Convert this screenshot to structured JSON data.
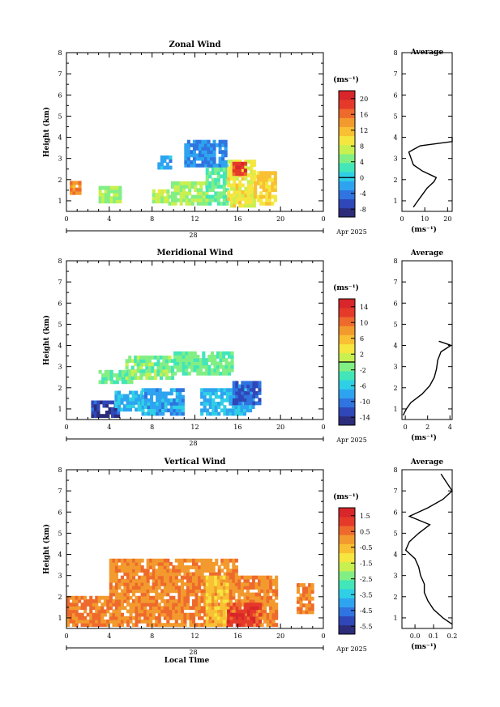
{
  "chart_data": [
    {
      "type": "heatmap",
      "title": "Zonal Wind",
      "ylabel": "Height (km)",
      "xlabel": "",
      "date_label": "Apr 2025",
      "day_label": "28",
      "x_ticks": [
        "0",
        "4",
        "8",
        "12",
        "16",
        "20",
        "0"
      ],
      "xlim": [
        0,
        24
      ],
      "ylim": [
        0.5,
        8
      ],
      "y_ticks": [
        "1",
        "2",
        "3",
        "4",
        "5",
        "6",
        "7",
        "8"
      ],
      "colorbar": {
        "unit": "(ms⁻¹)",
        "ticks": [
          "20",
          "16",
          "12",
          "8",
          "4",
          "0",
          "-4",
          "-8"
        ],
        "min": -10,
        "max": 22
      },
      "regions": [
        {
          "x": [
            0.3,
            1.3
          ],
          "y": [
            1.3,
            1.9
          ],
          "value": 14
        },
        {
          "x": [
            3.0,
            5.0
          ],
          "y": [
            0.9,
            1.6
          ],
          "value": 6
        },
        {
          "x": [
            8.0,
            9.5
          ],
          "y": [
            0.9,
            1.5
          ],
          "value": 7
        },
        {
          "x": [
            9.5,
            13.0
          ],
          "y": [
            0.8,
            1.9
          ],
          "value": 6
        },
        {
          "x": [
            13.0,
            15.0
          ],
          "y": [
            0.8,
            2.7
          ],
          "value": 4
        },
        {
          "x": [
            15.0,
            17.5
          ],
          "y": [
            0.7,
            2.8
          ],
          "value": 9
        },
        {
          "x": [
            17.5,
            19.5
          ],
          "y": [
            0.8,
            2.3
          ],
          "value": 11
        },
        {
          "x": [
            15.5,
            16.8
          ],
          "y": [
            2.2,
            2.7
          ],
          "value": 19
        },
        {
          "x": [
            8.5,
            9.8
          ],
          "y": [
            2.5,
            3.0
          ],
          "value": -2
        },
        {
          "x": [
            11.0,
            14.8
          ],
          "y": [
            2.6,
            3.8
          ],
          "value": -3
        }
      ],
      "average_profile": {
        "title": "Average",
        "xlabel": "(ms⁻¹)",
        "x_ticks": [
          "0",
          "10",
          "20"
        ],
        "xlim": [
          0,
          22
        ],
        "height": [
          0.7,
          1.0,
          1.3,
          1.6,
          1.9,
          2.1,
          2.4,
          2.7,
          3.0,
          3.3,
          3.6,
          3.8,
          4.0
        ],
        "speed": [
          5,
          7,
          9,
          11,
          14,
          15,
          9,
          5,
          4,
          3,
          8,
          22,
          22
        ]
      }
    },
    {
      "type": "heatmap",
      "title": "Meridional Wind",
      "ylabel": "Height (km)",
      "xlabel": "",
      "date_label": "Apr 2025",
      "day_label": "28",
      "x_ticks": [
        "0",
        "4",
        "8",
        "12",
        "16",
        "20",
        "0"
      ],
      "xlim": [
        0,
        24
      ],
      "ylim": [
        0.5,
        8
      ],
      "y_ticks": [
        "1",
        "2",
        "3",
        "4",
        "5",
        "6",
        "7",
        "8"
      ],
      "colorbar": {
        "unit": "(ms⁻¹)",
        "ticks": [
          "14",
          "10",
          "6",
          "2",
          "-2",
          "-6",
          "-10",
          "-14"
        ],
        "min": -16,
        "max": 16
      },
      "regions": [
        {
          "x": [
            2.3,
            4.8
          ],
          "y": [
            0.6,
            1.3
          ],
          "value": -13
        },
        {
          "x": [
            4.5,
            7.0
          ],
          "y": [
            0.9,
            1.8
          ],
          "value": -7
        },
        {
          "x": [
            7.0,
            11.0
          ],
          "y": [
            0.7,
            1.9
          ],
          "value": -8
        },
        {
          "x": [
            12.5,
            17.5
          ],
          "y": [
            0.7,
            1.9
          ],
          "value": -7
        },
        {
          "x": [
            15.5,
            18.0
          ],
          "y": [
            1.2,
            2.3
          ],
          "value": -11
        },
        {
          "x": [
            3.0,
            6.0
          ],
          "y": [
            2.2,
            2.7
          ],
          "value": -2
        },
        {
          "x": [
            5.5,
            10.0
          ],
          "y": [
            2.4,
            3.5
          ],
          "value": -1
        },
        {
          "x": [
            10.0,
            15.5
          ],
          "y": [
            2.6,
            3.7
          ],
          "value": -2
        }
      ],
      "average_profile": {
        "title": "Average",
        "xlabel": "(ms⁻¹)",
        "x_ticks": [
          "0",
          "2",
          "4"
        ],
        "xlim": [
          -0.3,
          4.2
        ],
        "height": [
          0.7,
          1.0,
          1.3,
          1.7,
          2.1,
          2.5,
          2.9,
          3.3,
          3.7,
          4.0,
          4.2
        ],
        "speed": [
          -0.2,
          0.1,
          0.5,
          1.5,
          2.2,
          2.6,
          2.8,
          2.9,
          3.2,
          4.1,
          3.0
        ]
      }
    },
    {
      "type": "heatmap",
      "title": "Vertical Wind",
      "ylabel": "Height (km)",
      "xlabel": "Local Time",
      "date_label": "Apr 2025",
      "day_label": "28",
      "x_ticks": [
        "0",
        "4",
        "8",
        "12",
        "16",
        "20",
        "0"
      ],
      "xlim": [
        0,
        24
      ],
      "ylim": [
        0.5,
        8
      ],
      "y_ticks": [
        "1",
        "2",
        "3",
        "4",
        "5",
        "6",
        "7",
        "8"
      ],
      "colorbar": {
        "unit": "(ms⁻¹)",
        "ticks": [
          "1.5",
          "0.5",
          "-0.5",
          "-1.5",
          "-2.5",
          "-3.5",
          "-4.5",
          "-5.5"
        ],
        "min": -6,
        "max": 2
      },
      "regions": [
        {
          "x": [
            0.0,
            4.0
          ],
          "y": [
            0.6,
            2.0
          ],
          "value": 0.3
        },
        {
          "x": [
            4.0,
            16.0
          ],
          "y": [
            0.6,
            3.8
          ],
          "value": 0.2
        },
        {
          "x": [
            16.0,
            19.5
          ],
          "y": [
            0.6,
            3.0
          ],
          "value": 0.2
        },
        {
          "x": [
            13.0,
            15.0
          ],
          "y": [
            0.6,
            3.0
          ],
          "value": -0.6
        },
        {
          "x": [
            15.0,
            18.0
          ],
          "y": [
            0.6,
            1.6
          ],
          "value": 1.2
        },
        {
          "x": [
            21.5,
            23.0
          ],
          "y": [
            1.2,
            2.6
          ],
          "value": 0.3
        }
      ],
      "average_profile": {
        "title": "Average",
        "xlabel": "(ms⁻¹)",
        "x_ticks": [
          "0.0",
          "0.1",
          "0.2"
        ],
        "xlim": [
          -0.07,
          0.2
        ],
        "height": [
          0.7,
          1.0,
          1.4,
          1.8,
          2.2,
          2.6,
          3.0,
          3.4,
          3.8,
          4.2,
          4.6,
          5.0,
          5.4,
          5.8,
          6.2,
          6.6,
          7.0,
          7.4,
          7.8
        ],
        "speed": [
          0.2,
          0.15,
          0.1,
          0.07,
          0.05,
          0.05,
          0.03,
          0.02,
          0.0,
          -0.05,
          -0.03,
          0.02,
          0.08,
          -0.03,
          0.07,
          0.15,
          0.2,
          0.17,
          0.14
        ]
      }
    }
  ]
}
